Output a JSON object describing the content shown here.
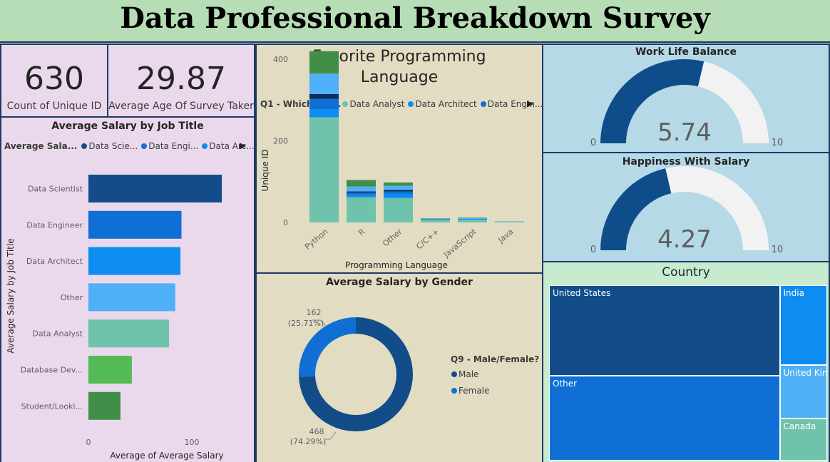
{
  "title": "Data Professional Breakdown Survey",
  "cards": {
    "unique_id": {
      "value": "630",
      "label": "Count of Unique ID"
    },
    "avg_age": {
      "value": "29.87",
      "label": "Average Age Of Survey Taker"
    }
  },
  "colors": {
    "data_scientist": "#124d8a",
    "data_engineer": "#0f6fd4",
    "data_architect": "#0d8cf2",
    "other": "#4fb0f7",
    "data_analyst": "#6fc2ab",
    "database_dev": "#53bb55",
    "student": "#418e48",
    "gauge_fill": "#0f4c8a",
    "gauge_track": "#f2f2f2"
  },
  "salary_by_job": {
    "title": "Average Salary by Job Title",
    "legend_title": "Average Sala...",
    "legend_items": [
      "Data Scie...",
      "Data Engi...",
      "Data Arc..."
    ],
    "legend_colors": [
      "#124d8a",
      "#0f6fd4",
      "#0d8cf2"
    ],
    "chart_data": {
      "type": "bar",
      "orientation": "horizontal",
      "title": "Average Salary by Job Title",
      "xlabel": "Average of Average Salary",
      "ylabel": "Average Salary by Job Title",
      "categories": [
        "Data Scientist",
        "Data Engineer",
        "Data Architect",
        "Other",
        "Data Analyst",
        "Database Dev...",
        "Student/Looki..."
      ],
      "values": [
        129,
        90,
        89,
        84,
        78,
        42,
        31
      ],
      "colors": [
        "#124d8a",
        "#0f6fd4",
        "#0d8cf2",
        "#4fb0f7",
        "#6fc2ab",
        "#53bb55",
        "#418e48"
      ],
      "xlim": [
        0,
        140
      ],
      "xticks": [
        "0",
        "100"
      ],
      "grid": true
    }
  },
  "fav_language": {
    "title_line1": "Favorite Programming",
    "title_line2": "Language",
    "legend_title": "Q1 - Which Titl...",
    "legend_items": [
      "Data Analyst",
      "Data Architect",
      "Data Engin..."
    ],
    "legend_colors": [
      "#6fc2ab",
      "#0d8cf2",
      "#0f6fd4"
    ],
    "chart_data": {
      "type": "bar",
      "stacked": true,
      "xlabel": "Programming Language",
      "ylabel": "Unique ID",
      "categories": [
        "Python",
        "R",
        "Other",
        "C/C++",
        "JavaScript",
        "Java"
      ],
      "ylim": [
        0,
        450
      ],
      "yticks": [
        "0",
        "200",
        "400"
      ],
      "series": [
        {
          "name": "Data Analyst",
          "color": "#6fc2ab",
          "values": [
            258,
            62,
            60,
            6,
            7,
            2
          ]
        },
        {
          "name": "Data Architect",
          "color": "#0d8cf2",
          "values": [
            20,
            6,
            10,
            1,
            1,
            0
          ]
        },
        {
          "name": "Data Engineer",
          "color": "#0f6fd4",
          "values": [
            25,
            5,
            6,
            1,
            1,
            0
          ]
        },
        {
          "series_key": "s4",
          "color": "#0a2f5c",
          "values": [
            12,
            3,
            4,
            0,
            0,
            0
          ]
        },
        {
          "series_key": "s5",
          "color": "#4fb0f7",
          "values": [
            50,
            12,
            10,
            1,
            2,
            1
          ]
        },
        {
          "series_key": "s6",
          "color": "#418e48",
          "values": [
            55,
            16,
            8,
            1,
            1,
            0
          ]
        }
      ]
    }
  },
  "salary_by_gender": {
    "title": "Average Salary by Gender",
    "legend_title": "Q9 - Male/Female?",
    "legend_items": [
      "Male",
      "Female"
    ],
    "legend_colors": [
      "#124d8a",
      "#0f6fd4"
    ],
    "chart_data": {
      "type": "pie",
      "donut": true,
      "labels": [
        "Male",
        "Female"
      ],
      "values": [
        468,
        162
      ],
      "value_labels": [
        "468",
        "162"
      ],
      "percent_labels": [
        "(74.29%)",
        "(25.71%)"
      ],
      "colors": [
        "#124d8a",
        "#0f6fd4"
      ]
    }
  },
  "gauges": [
    {
      "title": "Work Life Balance",
      "value": 5.74,
      "value_label": "5.74",
      "min_label": "0",
      "max_label": "10",
      "min": 0,
      "max": 10
    },
    {
      "title": "Happiness With Salary",
      "value": 4.27,
      "value_label": "4.27",
      "min_label": "0",
      "max_label": "10",
      "min": 0,
      "max": 10
    }
  ],
  "country": {
    "title": "Country",
    "chart_data": {
      "type": "treemap",
      "labels": [
        "United States",
        "Other",
        "India",
        "United King...",
        "Canada"
      ],
      "values": [
        264,
        247,
        48,
        32,
        25
      ],
      "colors": [
        "#124d8a",
        "#0f6fd4",
        "#0d8cf2",
        "#4fb0f7",
        "#6fc2ab"
      ]
    }
  }
}
